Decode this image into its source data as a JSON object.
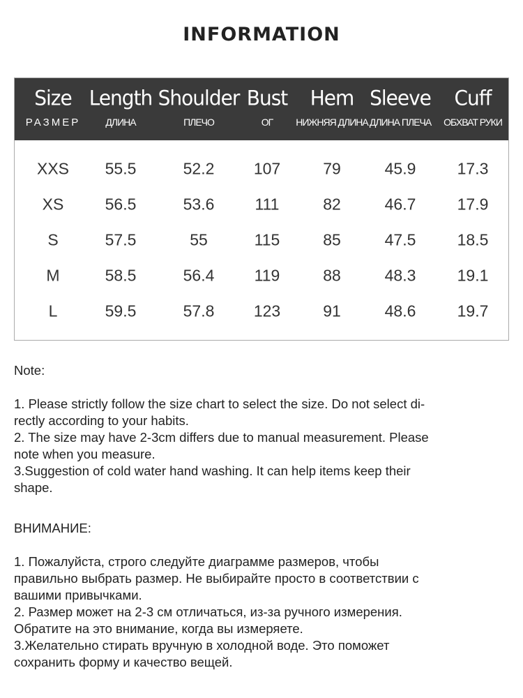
{
  "title": "INFORMATION",
  "table": {
    "columns": [
      {
        "en": "Size",
        "ru": "РАЗМЕР"
      },
      {
        "en": "Length",
        "ru": "ДЛИНА"
      },
      {
        "en": "Shoulder",
        "ru": "ПЛЕЧО"
      },
      {
        "en": "Bust",
        "ru": "ОГ"
      },
      {
        "en": "Hem",
        "ru": "НИЖНЯЯ ДЛИНА"
      },
      {
        "en": "Sleeve",
        "ru": "ДЛИНА ПЛЕЧА"
      },
      {
        "en": "Cuff",
        "ru": "ОБХВАТ РУКИ"
      }
    ],
    "rows": [
      [
        "XXS",
        "55.5",
        "52.2",
        "107",
        "79",
        "45.9",
        "17.3"
      ],
      [
        "XS",
        "56.5",
        "53.6",
        "111",
        "82",
        "46.7",
        "17.9"
      ],
      [
        "S",
        "57.5",
        "55",
        "115",
        "85",
        "47.5",
        "18.5"
      ],
      [
        "M",
        "58.5",
        "56.4",
        "119",
        "88",
        "48.3",
        "19.1"
      ],
      [
        "L",
        "59.5",
        "57.8",
        "123",
        "91",
        "48.6",
        "19.7"
      ]
    ]
  },
  "notes": {
    "en_heading": "Note:",
    "en_lines": [
      "1. Please strictly follow the size chart  to select the size. Do not select di-",
      "rectly according to your habits.",
      "2. The size may have 2-3cm differs due to manual measurement. Please",
      "note when you measure.",
      "3.Suggestion of cold water hand washing. It can help items keep their",
      "shape."
    ],
    "ru_heading": "ВНИМАНИЕ:",
    "ru_lines": [
      "1. Пожалуйста, строго следуйте диаграмме размеров, чтобы",
      "правильно выбрать размер. Не выбирайте просто в соответствии с",
      "вашими привычками.",
      "2. Размер может на 2-3 см отличаться, из-за ручного измерения.",
      "Обратите на это внимание, когда вы измеряете.",
      "3.Желательно стирать вручную в холодной воде. Это поможет",
      "сохранить форму и качество вещей."
    ]
  }
}
